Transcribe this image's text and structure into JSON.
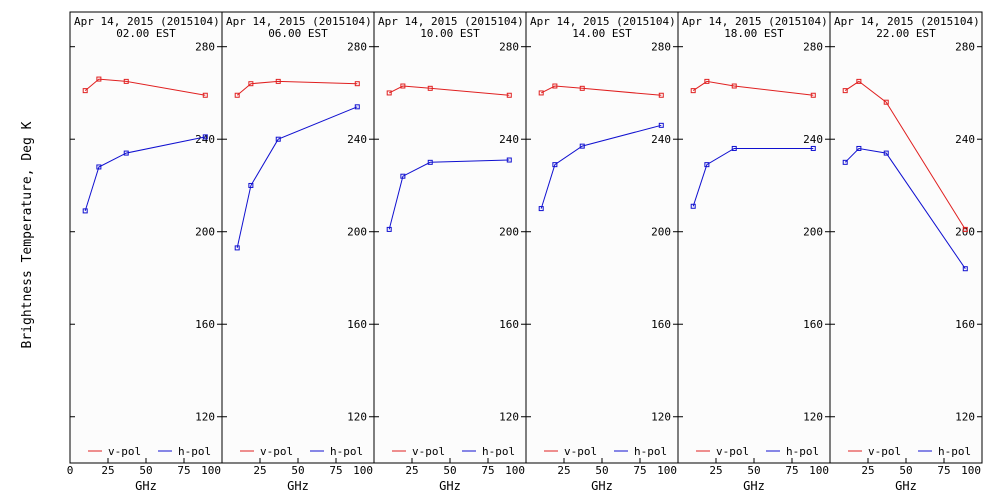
{
  "figure": {
    "ylabel": "Brightness Temperature, Deg K",
    "xlabel": "GHz",
    "background": "#fcfcfc",
    "colors": {
      "v_pol": "#e02020",
      "h_pol": "#1010d0"
    }
  },
  "chart_data": [
    {
      "type": "line",
      "title": "Apr 14, 2015 (2015104)",
      "subtitle": "02.00 EST",
      "x": [
        10,
        19,
        37,
        89
      ],
      "series": [
        {
          "name": "v-pol",
          "values": [
            261,
            266,
            265,
            259
          ]
        },
        {
          "name": "h-pol",
          "values": [
            209,
            228,
            234,
            241
          ]
        }
      ],
      "xticks": [
        0,
        25,
        50,
        75,
        100
      ],
      "yticks": [
        120,
        160,
        200,
        240,
        280
      ],
      "xlim": [
        0,
        100
      ],
      "ylim": [
        100,
        295
      ],
      "legend": "bottom"
    },
    {
      "type": "line",
      "title": "Apr 14, 2015 (2015104)",
      "subtitle": "06.00 EST",
      "x": [
        10,
        19,
        37,
        89
      ],
      "series": [
        {
          "name": "v-pol",
          "values": [
            259,
            264,
            265,
            264
          ]
        },
        {
          "name": "h-pol",
          "values": [
            193,
            220,
            240,
            254
          ]
        }
      ],
      "xticks": [
        0,
        25,
        50,
        75,
        100
      ],
      "yticks": [
        120,
        160,
        200,
        240,
        280
      ],
      "xlim": [
        0,
        100
      ],
      "ylim": [
        100,
        295
      ],
      "legend": "bottom"
    },
    {
      "type": "line",
      "title": "Apr 14, 2015 (2015104)",
      "subtitle": "10.00 EST",
      "x": [
        10,
        19,
        37,
        89
      ],
      "series": [
        {
          "name": "v-pol",
          "values": [
            260,
            263,
            262,
            259
          ]
        },
        {
          "name": "h-pol",
          "values": [
            201,
            224,
            230,
            231
          ]
        }
      ],
      "xticks": [
        0,
        25,
        50,
        75,
        100
      ],
      "yticks": [
        120,
        160,
        200,
        240,
        280
      ],
      "xlim": [
        0,
        100
      ],
      "ylim": [
        100,
        295
      ],
      "legend": "bottom"
    },
    {
      "type": "line",
      "title": "Apr 14, 2015 (2015104)",
      "subtitle": "14.00 EST",
      "x": [
        10,
        19,
        37,
        89
      ],
      "series": [
        {
          "name": "v-pol",
          "values": [
            260,
            263,
            262,
            259
          ]
        },
        {
          "name": "h-pol",
          "values": [
            210,
            229,
            237,
            246
          ]
        }
      ],
      "xticks": [
        0,
        25,
        50,
        75,
        100
      ],
      "yticks": [
        120,
        160,
        200,
        240,
        280
      ],
      "xlim": [
        0,
        100
      ],
      "ylim": [
        100,
        295
      ],
      "legend": "bottom"
    },
    {
      "type": "line",
      "title": "Apr 14, 2015 (2015104)",
      "subtitle": "18.00 EST",
      "x": [
        10,
        19,
        37,
        89
      ],
      "series": [
        {
          "name": "v-pol",
          "values": [
            261,
            265,
            263,
            259
          ]
        },
        {
          "name": "h-pol",
          "values": [
            211,
            229,
            236,
            236
          ]
        }
      ],
      "xticks": [
        0,
        25,
        50,
        75,
        100
      ],
      "yticks": [
        120,
        160,
        200,
        240,
        280
      ],
      "xlim": [
        0,
        100
      ],
      "ylim": [
        100,
        295
      ],
      "legend": "bottom"
    },
    {
      "type": "line",
      "title": "Apr 14, 2015 (2015104)",
      "subtitle": "22.00 EST",
      "x": [
        10,
        19,
        37,
        89
      ],
      "series": [
        {
          "name": "v-pol",
          "values": [
            261,
            265,
            256,
            201
          ]
        },
        {
          "name": "h-pol",
          "values": [
            230,
            236,
            234,
            184
          ]
        }
      ],
      "xticks": [
        0,
        25,
        50,
        75,
        100
      ],
      "yticks": [
        120,
        160,
        200,
        240,
        280
      ],
      "xlim": [
        0,
        100
      ],
      "ylim": [
        100,
        295
      ],
      "legend": "bottom"
    }
  ]
}
